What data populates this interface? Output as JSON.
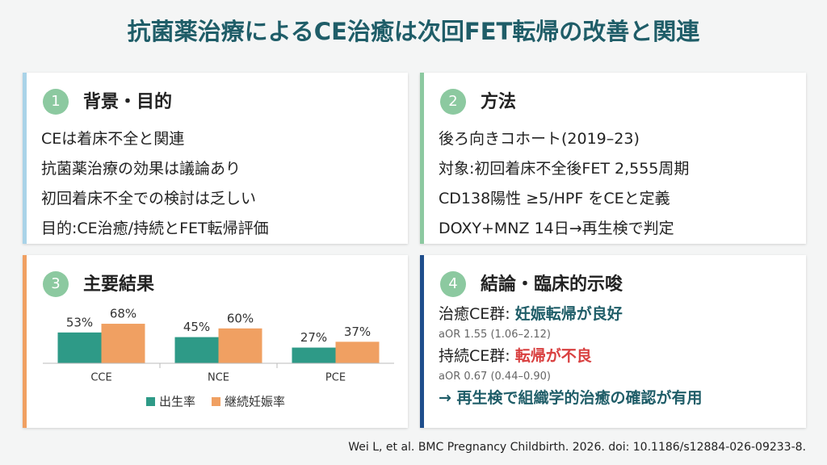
{
  "title": "抗菌薬治療によるCE治癒は次回FET転帰の改善と関連",
  "panels": [
    {
      "number": "1",
      "heading": "背景・目的",
      "lines": [
        "CEは着床不全と関連",
        "抗菌薬治療の効果は議論あり",
        "初回着床不全での検討は乏しい",
        "目的:CE治癒/持続とFET転帰評価"
      ]
    },
    {
      "number": "2",
      "heading": "方法",
      "lines": [
        "後ろ向きコホート(2019–23)",
        "対象:初回着床不全後FET 2,555周期",
        "CD138陽性 ≥5/HPF をCEと定義",
        "DOXY+MNZ 14日→再生検で判定"
      ]
    },
    {
      "number": "3",
      "heading": "主要結果"
    },
    {
      "number": "4",
      "heading": "結論・臨床的示唆",
      "items": [
        {
          "text": "治癒CE群: ",
          "highlight": "妊娠転帰が良好"
        },
        {
          "note": "aOR 1.55 (1.06–2.12)"
        },
        {
          "text": "持続CE群: ",
          "highlight": "転帰が不良"
        },
        {
          "note": "aOR 0.67 (0.44–0.90)"
        },
        {
          "text": "→ 再生検で組織学的治癒の確認が有用"
        }
      ]
    }
  ],
  "citation": "Wei L, et al. BMC Pregnancy Childbirth. 2026. doi: 10.1186/s12884-026-09233-8.",
  "chart_data": {
    "type": "bar",
    "categories": [
      "CCE",
      "NCE",
      "PCE"
    ],
    "series": [
      {
        "name": "出生率",
        "color": "#2e9a87",
        "values": [
          53,
          45,
          27
        ],
        "value_labels": [
          "53%",
          "45%",
          "27%"
        ]
      },
      {
        "name": "継続妊娠率",
        "color": "#f0a062",
        "values": [
          68,
          60,
          37
        ],
        "value_labels": [
          "68%",
          "60%",
          "37%"
        ]
      }
    ],
    "ylim": [
      0,
      100
    ]
  }
}
